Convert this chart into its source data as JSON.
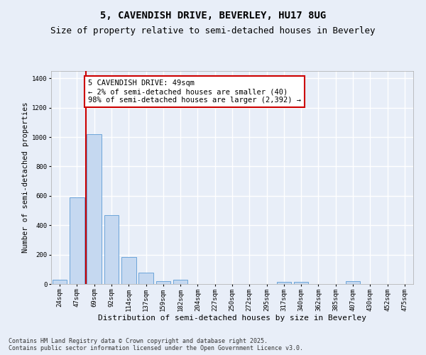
{
  "title_line1": "5, CAVENDISH DRIVE, BEVERLEY, HU17 8UG",
  "title_line2": "Size of property relative to semi-detached houses in Beverley",
  "xlabel": "Distribution of semi-detached houses by size in Beverley",
  "ylabel": "Number of semi-detached properties",
  "categories": [
    "24sqm",
    "47sqm",
    "69sqm",
    "92sqm",
    "114sqm",
    "137sqm",
    "159sqm",
    "182sqm",
    "204sqm",
    "227sqm",
    "250sqm",
    "272sqm",
    "295sqm",
    "317sqm",
    "340sqm",
    "362sqm",
    "385sqm",
    "407sqm",
    "430sqm",
    "452sqm",
    "475sqm"
  ],
  "values": [
    30,
    590,
    1020,
    470,
    185,
    75,
    20,
    30,
    0,
    0,
    0,
    0,
    0,
    15,
    15,
    0,
    0,
    20,
    0,
    0,
    0
  ],
  "bar_color": "#c5d8f0",
  "bar_edge_color": "#5b9bd5",
  "ylim": [
    0,
    1450
  ],
  "yticks": [
    0,
    200,
    400,
    600,
    800,
    1000,
    1200,
    1400
  ],
  "property_line_x": 1.5,
  "annotation_text": "5 CAVENDISH DRIVE: 49sqm\n← 2% of semi-detached houses are smaller (40)\n98% of semi-detached houses are larger (2,392) →",
  "annotation_box_color": "#ffffff",
  "annotation_box_edge": "#cc0000",
  "vline_color": "#cc0000",
  "footnote": "Contains HM Land Registry data © Crown copyright and database right 2025.\nContains public sector information licensed under the Open Government Licence v3.0.",
  "background_color": "#e8eef8",
  "plot_bg_color": "#e8eef8",
  "grid_color": "#ffffff",
  "title_fontsize": 10,
  "subtitle_fontsize": 9,
  "xlabel_fontsize": 8,
  "ylabel_fontsize": 7.5,
  "tick_fontsize": 6.5,
  "annotation_fontsize": 7.5,
  "footnote_fontsize": 6
}
